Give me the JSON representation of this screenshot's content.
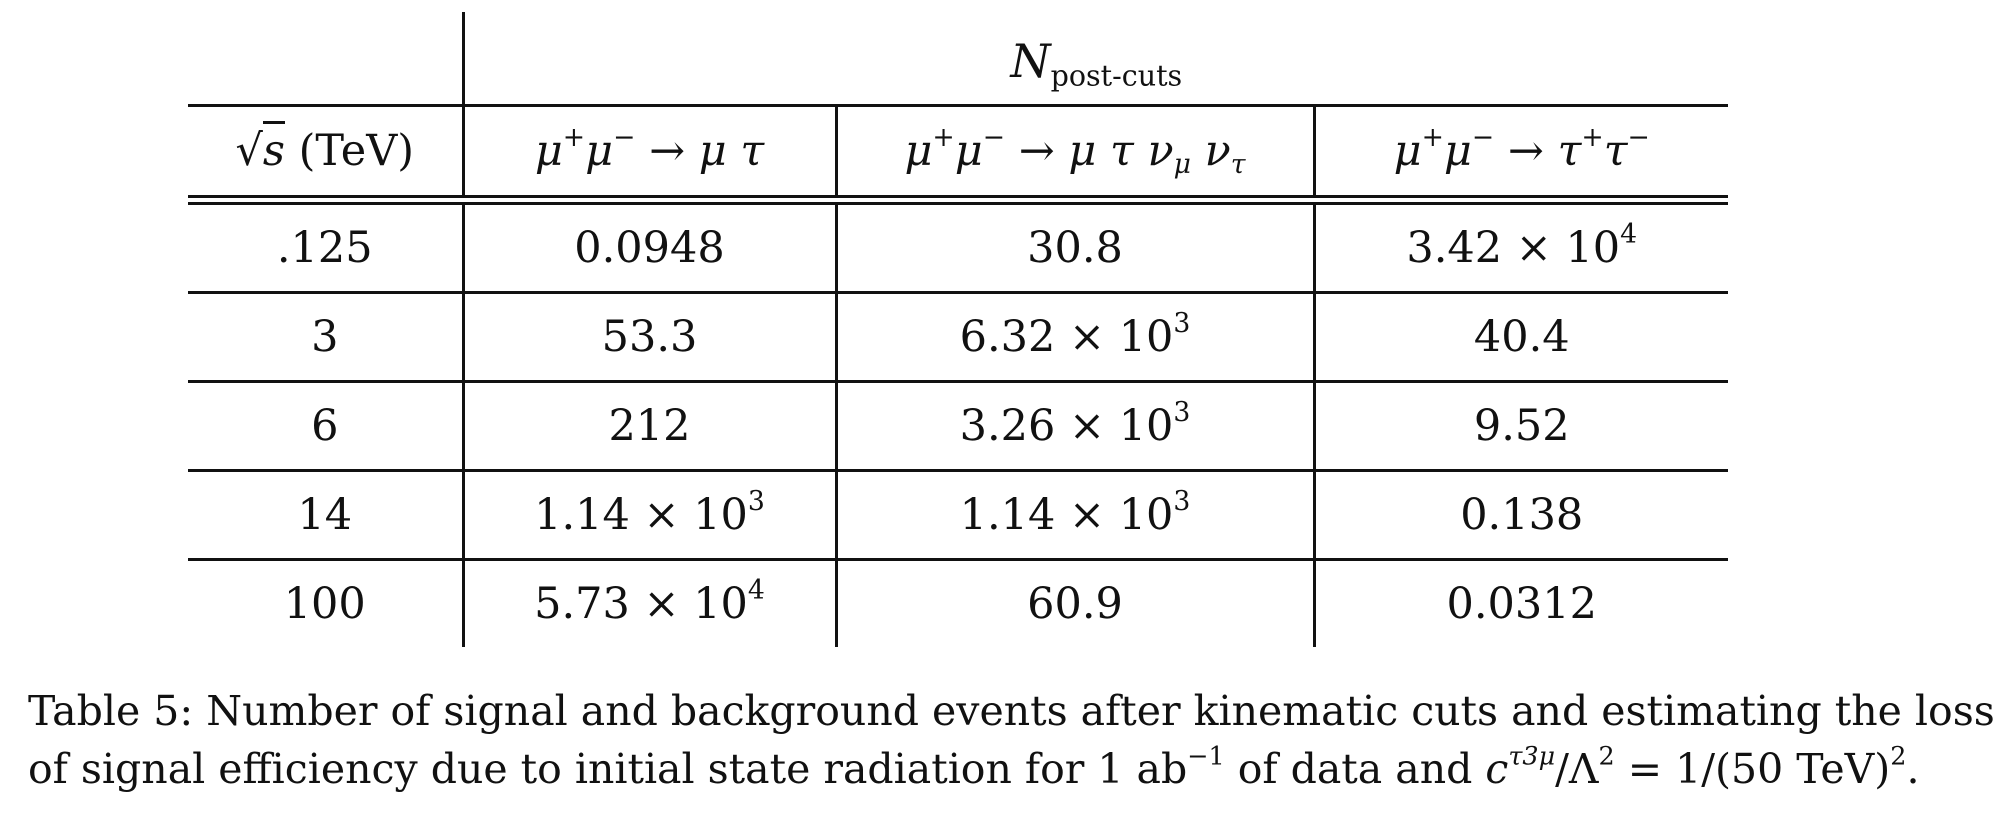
{
  "table": {
    "super_header": "N",
    "super_header_sub": "post-cuts",
    "headers": {
      "sqrt_s": "s",
      "sqrt_s_unit": "(TeV)",
      "col1": {
        "a": "μ",
        "a_sup": "+",
        "b": "μ",
        "b_sup": "−",
        "arrow": "→",
        "c": "μ τ"
      },
      "col2": {
        "a": "μ",
        "a_sup": "+",
        "b": "μ",
        "b_sup": "−",
        "arrow": "→",
        "c": "μ τ ν",
        "c_sub": "μ",
        "d": "ν",
        "d_sub": "τ"
      },
      "col3": {
        "a": "μ",
        "a_sup": "+",
        "b": "μ",
        "b_sup": "−",
        "arrow": "→",
        "c": "τ",
        "c_sup": "+",
        "d": "τ",
        "d_sup": "−"
      }
    },
    "rows": [
      {
        "sqrt_s": ".125",
        "c1": {
          "m": "0.0948",
          "e": ""
        },
        "c2": {
          "m": "30.8",
          "e": ""
        },
        "c3": {
          "m": "3.42 × 10",
          "e": "4"
        }
      },
      {
        "sqrt_s": "3",
        "c1": {
          "m": "53.3",
          "e": ""
        },
        "c2": {
          "m": "6.32 × 10",
          "e": "3"
        },
        "c3": {
          "m": "40.4",
          "e": ""
        }
      },
      {
        "sqrt_s": "6",
        "c1": {
          "m": "212",
          "e": ""
        },
        "c2": {
          "m": "3.26 × 10",
          "e": "3"
        },
        "c3": {
          "m": "9.52",
          "e": ""
        }
      },
      {
        "sqrt_s": "14",
        "c1": {
          "m": "1.14 × 10",
          "e": "3"
        },
        "c2": {
          "m": "1.14 × 10",
          "e": "3"
        },
        "c3": {
          "m": "0.138",
          "e": ""
        }
      },
      {
        "sqrt_s": "100",
        "c1": {
          "m": "5.73 × 10",
          "e": "4"
        },
        "c2": {
          "m": "60.9",
          "e": ""
        },
        "c3": {
          "m": "0.0312",
          "e": ""
        }
      }
    ]
  },
  "caption": {
    "line1": "Table 5:  Number of signal and background events after kinematic cuts and estimating the loss",
    "line2_a": "of signal efficiency due to initial state radiation for 1 ab",
    "line2_sup1": "−1",
    "line2_b": " of data and ",
    "line2_c": "c",
    "line2_c_sup": "τ3μ",
    "line2_d": "/Λ",
    "line2_d_sup": "2",
    "line2_e": " = 1/(50 TeV)",
    "line2_e_sup": "2",
    "line2_f": "."
  }
}
